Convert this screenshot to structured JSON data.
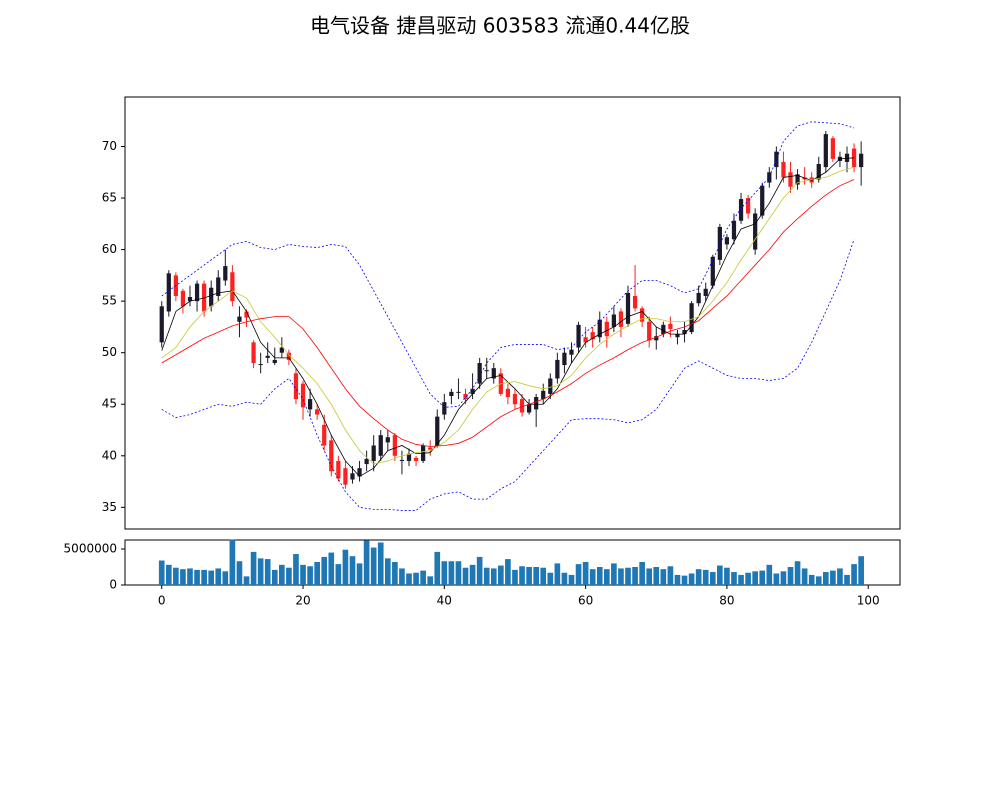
{
  "chart_data": {
    "type": "candlestick",
    "title": "电气设备 捷昌驱动 603583 流通0.44亿股",
    "open": [
      51,
      54,
      57.5,
      56,
      55,
      55,
      56.7,
      54.5,
      55.5,
      57,
      57.8,
      53,
      54,
      51,
      48.8,
      49.5,
      49,
      50,
      50,
      48,
      47,
      44.5,
      44.5,
      43,
      41.5,
      39.5,
      38.8,
      37.7,
      38,
      39.2,
      39.5,
      40,
      41.3,
      42,
      39.5,
      39.5,
      39.8,
      39.5,
      40.8,
      41,
      44,
      45.8,
      46.2,
      46,
      46,
      47,
      48.3,
      47.5,
      48,
      46.5,
      46,
      45.5,
      44.2,
      44.5,
      45.5,
      46,
      47.5,
      48.8,
      49.8,
      50.5,
      51.5,
      52,
      51.5,
      53,
      52.5,
      54,
      52.8,
      55.5,
      54.3,
      53,
      51.2,
      51.8,
      52.8,
      51.5,
      51.8,
      52,
      54.8,
      55.5,
      56.5,
      59,
      60.5,
      61,
      62.8,
      65,
      60,
      63.3,
      66.5,
      68,
      68.5,
      67.5,
      66.3,
      67,
      67,
      66.8,
      68,
      70.8,
      68.6,
      68.5,
      69.8,
      68
    ],
    "high": [
      55,
      58,
      57.8,
      56.2,
      56.5,
      57,
      57,
      57,
      58,
      60,
      58.5,
      54.5,
      54.2,
      51.2,
      50,
      51,
      50.5,
      51.5,
      50.3,
      48.5,
      47.3,
      46.5,
      45,
      44,
      42,
      40,
      39.5,
      39,
      39.5,
      40.5,
      42,
      42.5,
      42.5,
      42.2,
      40.5,
      40.7,
      40,
      41.2,
      41.5,
      44.5,
      46,
      46.5,
      47.5,
      46.5,
      48,
      49.5,
      49.5,
      49,
      48.5,
      47,
      46.5,
      46,
      45.5,
      46,
      47,
      48,
      50,
      50.5,
      51,
      53,
      52.5,
      52.5,
      54,
      53.5,
      54.5,
      54.3,
      56.5,
      58.5,
      54.5,
      53.5,
      52.5,
      53,
      53.5,
      52.2,
      53,
      55,
      56.5,
      56.8,
      59.5,
      62.5,
      61.5,
      63.5,
      65.5,
      65.3,
      64,
      66.5,
      68,
      70,
      69.5,
      68.5,
      67.8,
      68,
      67.5,
      69,
      71.5,
      71,
      69.5,
      70,
      70.3,
      70.5
    ],
    "low": [
      50.5,
      53.5,
      55,
      53.8,
      54.5,
      54,
      53.5,
      54,
      55,
      56.5,
      54.5,
      51.5,
      52.5,
      48.5,
      48,
      49,
      48.8,
      49.5,
      48.8,
      45,
      43.5,
      43.8,
      43.5,
      40.5,
      38,
      37.5,
      36.8,
      37.3,
      37.5,
      38.5,
      38.5,
      39.5,
      40.5,
      39.5,
      38.2,
      39,
      39,
      39.3,
      40,
      40.8,
      43.5,
      45,
      45.5,
      45,
      45.5,
      46.5,
      47.5,
      47,
      45.8,
      45,
      44.5,
      43.8,
      44,
      42.8,
      45,
      45.5,
      47,
      48,
      49,
      50,
      50.5,
      50.5,
      51,
      50.5,
      52,
      51.5,
      52.5,
      54,
      52.5,
      50.5,
      50.3,
      51.5,
      51.5,
      50.8,
      51,
      51.8,
      54.5,
      55,
      56.2,
      58.5,
      60,
      60.5,
      62.5,
      63,
      59.5,
      63,
      66,
      66.8,
      66.5,
      65.5,
      65.8,
      66.3,
      66,
      66.5,
      67.5,
      68.5,
      68,
      67.5,
      67.5,
      66.2
    ],
    "close": [
      54.5,
      57.7,
      55.5,
      54.5,
      55.4,
      56.7,
      54,
      56.3,
      57.3,
      58.4,
      55,
      53.5,
      53.4,
      49,
      48.9,
      49.7,
      49.3,
      50.5,
      49.3,
      45.5,
      44.7,
      45.5,
      44,
      41,
      38.5,
      37.8,
      37.2,
      38.3,
      38.8,
      39.7,
      41,
      42,
      41.8,
      40,
      39.6,
      40.2,
      39.5,
      41,
      40.6,
      43.8,
      45.2,
      46.2,
      46.2,
      45.5,
      46.5,
      49,
      48.3,
      48.5,
      46,
      45.7,
      45,
      44.2,
      45,
      45.7,
      46.3,
      47.5,
      49.3,
      50,
      50.3,
      52.7,
      51,
      51.3,
      53.2,
      51.6,
      53.7,
      52.5,
      55.8,
      54.3,
      53,
      51.2,
      51.6,
      52.7,
      52.3,
      51.8,
      52.2,
      54.8,
      55.8,
      56.2,
      59.3,
      62.2,
      61.2,
      62.8,
      64.9,
      63.5,
      63.5,
      66.2,
      67.5,
      69.5,
      67,
      66.1,
      67.3,
      66.8,
      66.5,
      68.3,
      71.2,
      68.8,
      69,
      69.3,
      68,
      69.3
    ],
    "volume": [
      3400000,
      2800000,
      2400000,
      2200000,
      2300000,
      2100000,
      2100000,
      2000000,
      2300000,
      1900000,
      6300000,
      3300000,
      1200000,
      4600000,
      3700000,
      3600000,
      2100000,
      2800000,
      2400000,
      4300000,
      2800000,
      2600000,
      3200000,
      3900000,
      4500000,
      2900000,
      4900000,
      4000000,
      3000000,
      6200000,
      5200000,
      5900000,
      3700000,
      3200000,
      2300000,
      1600000,
      1700000,
      2000000,
      1200000,
      4600000,
      3300000,
      3300000,
      3300000,
      2400000,
      2800000,
      3900000,
      2400000,
      2300000,
      2700000,
      3600000,
      2100000,
      2600000,
      2500000,
      2500000,
      2400000,
      1700000,
      3000000,
      1700000,
      1400000,
      2900000,
      3200000,
      2200000,
      2500000,
      2200000,
      3000000,
      2300000,
      2400000,
      2500000,
      3200000,
      2300000,
      2500000,
      2200000,
      2600000,
      1400000,
      1300000,
      1600000,
      2200000,
      2100000,
      1800000,
      2700000,
      2400000,
      1800000,
      1400000,
      1700000,
      1900000,
      2000000,
      2800000,
      1600000,
      1900000,
      2500000,
      3300000,
      2300000,
      1400000,
      1200000,
      1800000,
      2000000,
      2300000,
      1400000,
      2900000,
      4000000
    ],
    "line_x": [
      0,
      2,
      4,
      6,
      8,
      10,
      12,
      14,
      16,
      18,
      20,
      22,
      24,
      26,
      28,
      30,
      32,
      34,
      36,
      38,
      40,
      42,
      44,
      46,
      48,
      50,
      52,
      54,
      56,
      58,
      60,
      62,
      64,
      66,
      68,
      70,
      72,
      74,
      76,
      78,
      80,
      82,
      84,
      86,
      88,
      90,
      92,
      94,
      96,
      98
    ],
    "lines": [
      {
        "color": "#000000",
        "values": [
          50.2,
          54,
          55,
          55.3,
          55.8,
          56,
          54,
          51,
          49.5,
          49.5,
          47.5,
          45,
          42,
          39.5,
          38,
          38.8,
          40.5,
          41,
          40.2,
          40.3,
          42,
          44.5,
          46,
          47.5,
          47.8,
          46.5,
          45,
          45,
          46.5,
          49,
          51,
          51.8,
          52.5,
          53.5,
          54,
          52.5,
          51.8,
          51.8,
          53.5,
          56.5,
          59.5,
          62,
          62.5,
          64.5,
          67,
          67.2,
          66.7,
          67.5,
          68.8,
          68.9
        ]
      },
      {
        "color": "#c8c832",
        "values": [
          49.5,
          50.5,
          52.5,
          54,
          55,
          56,
          55.3,
          53,
          51.5,
          49.8,
          48.5,
          47,
          45,
          42.5,
          40.5,
          39.2,
          39.5,
          40,
          40.3,
          40.5,
          41.3,
          42.5,
          44.5,
          46.2,
          47,
          47.2,
          46.8,
          46.5,
          46.8,
          47.8,
          49.5,
          50.8,
          51.8,
          52.6,
          53.3,
          53.3,
          53,
          53,
          53.5,
          55,
          56.8,
          59,
          61,
          63,
          65,
          66.5,
          66.8,
          67,
          67.6,
          68
        ]
      },
      {
        "color": "#ff0000",
        "values": [
          49,
          49.8,
          50.6,
          51.4,
          52,
          52.6,
          53,
          53.3,
          53.5,
          53.5,
          52.3,
          50.5,
          48.5,
          46.5,
          44.8,
          43.6,
          42.5,
          41.6,
          41.1,
          40.9,
          41,
          41.2,
          41.8,
          42.8,
          43.8,
          44.5,
          45,
          45.5,
          46.2,
          47,
          48,
          48.8,
          49.5,
          50.3,
          51,
          51.5,
          52.1,
          52.5,
          53.1,
          54.3,
          55.5,
          57,
          58.5,
          60,
          61.7,
          63,
          64.2,
          65.3,
          66.2,
          66.8
        ]
      },
      {
        "color": "#0000ff",
        "dashed": true,
        "values": [
          55.5,
          56.5,
          57.5,
          58.5,
          59.5,
          60.5,
          60.8,
          60.2,
          60,
          60.5,
          60.3,
          60.2,
          60.5,
          60.3,
          58.5,
          56,
          53.5,
          51,
          48.5,
          46,
          44.7,
          44.8,
          46.5,
          49,
          50.5,
          50.8,
          50.8,
          50.8,
          50.3,
          50.5,
          52,
          53,
          54.5,
          56,
          57,
          57,
          56.5,
          55.8,
          56.2,
          59,
          62,
          64,
          65.5,
          67,
          70.5,
          72,
          72.4,
          72.3,
          72.2,
          71.8
        ]
      },
      {
        "color": "#0000ff",
        "dashed": true,
        "values": [
          44.5,
          43.7,
          44,
          44.5,
          45,
          44.8,
          45.2,
          45,
          46.5,
          47.5,
          45.5,
          42,
          39,
          36.5,
          35,
          34.8,
          34.8,
          34.7,
          34.7,
          35.8,
          36.3,
          36.5,
          35.8,
          35.8,
          36.8,
          37.5,
          39,
          40.5,
          42,
          43.5,
          43.6,
          43.6,
          43.5,
          43.2,
          43.5,
          44.5,
          46.5,
          48.5,
          49.2,
          48.5,
          47.8,
          47.5,
          47.5,
          47.3,
          47.5,
          48.5,
          51,
          54,
          57,
          61
        ]
      }
    ],
    "up_color": "#1a1a2a",
    "down_color": "#ff2020",
    "volume_color": "#1f77b4",
    "xlim": [
      -5.2,
      104.5
    ],
    "xticks": [
      0,
      20,
      40,
      60,
      80,
      100
    ],
    "ylim": [
      32.9,
      74.8
    ],
    "yticks": [
      35,
      40,
      45,
      50,
      55,
      60,
      65,
      70
    ],
    "volume_ylim": [
      0,
      6250000
    ],
    "volume_yticks": [
      0,
      5000000
    ]
  }
}
